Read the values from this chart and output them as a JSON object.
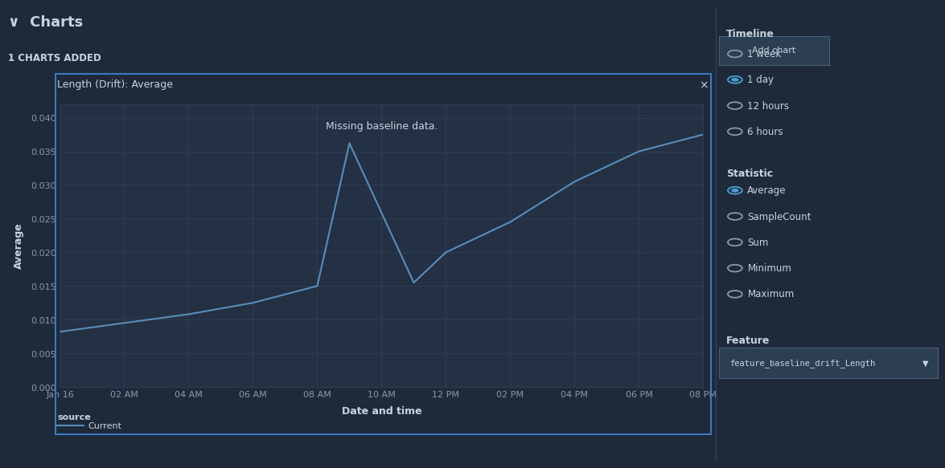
{
  "bg_color": "#1e2a3a",
  "chart_bg": "#243044",
  "title_text": "Charts",
  "subtitle_text": "1 CHARTS ADDED",
  "chart_title": "Length (Drift): Average",
  "annotation_text": "Missing baseline data.",
  "xlabel": "Date and time",
  "ylabel": "Average",
  "x_ticks": [
    "Jan 16",
    "02 AM",
    "04 AM",
    "06 AM",
    "08 AM",
    "10 AM",
    "12 PM",
    "02 PM",
    "04 PM",
    "06 PM",
    "08 PM"
  ],
  "x_tick_positions": [
    0,
    2,
    4,
    6,
    8,
    10,
    12,
    14,
    16,
    18,
    20
  ],
  "x_values": [
    0,
    2,
    4,
    6,
    8,
    9,
    11,
    12,
    14,
    16,
    18,
    20
  ],
  "y_values": [
    0.0082,
    0.0095,
    0.0108,
    0.0125,
    0.015,
    0.0362,
    0.0155,
    0.02,
    0.0245,
    0.0305,
    0.035,
    0.0375
  ],
  "ylim": [
    0.0,
    0.042
  ],
  "yticks": [
    0.0,
    0.005,
    0.01,
    0.015,
    0.02,
    0.025,
    0.03,
    0.035,
    0.04
  ],
  "line_color": "#5b8db8",
  "grid_color": "#2e3f55",
  "text_color": "#c8d4e0",
  "tick_color": "#8899aa",
  "border_color": "#3a7abf",
  "source_label": "source",
  "legend_label": "Current",
  "timeline_label": "Timeline",
  "timeline_options": [
    "1 week",
    "1 day",
    "12 hours",
    "6 hours"
  ],
  "timeline_selected": 1,
  "statistic_label": "Statistic",
  "statistic_options": [
    "Average",
    "SampleCount",
    "Sum",
    "Minimum",
    "Maximum"
  ],
  "statistic_selected": 0,
  "feature_label": "Feature",
  "feature_value": "feature_baseline_drift_Length",
  "add_chart_btn": "Add chart",
  "close_btn": "×",
  "radio_selected_color": "#4a9fd4",
  "radio_unselected_color": "#8899aa",
  "btn_bg": "#2c3e52",
  "btn_border": "#4a5f75",
  "dropdown_bg": "#2c3e52",
  "dropdown_border": "#4a5f75"
}
